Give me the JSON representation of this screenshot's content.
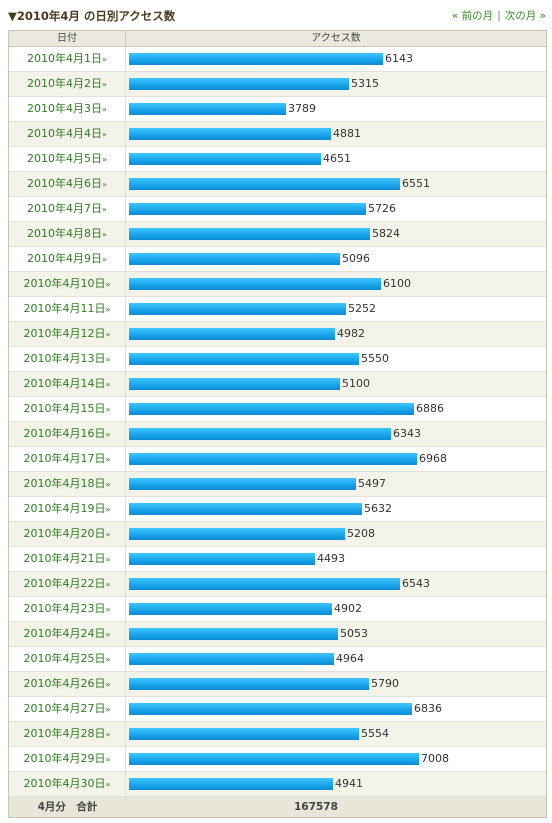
{
  "header": {
    "title": "▼2010年4月 の日別アクセス数",
    "prev_label": "« 前の月",
    "next_label": "次の月 »"
  },
  "table": {
    "col_date": "日付",
    "col_access": "アクセス数",
    "total_label": "4月分　合計",
    "total_value": "167578"
  },
  "chart_data": {
    "type": "bar",
    "orientation": "horizontal",
    "categories": [
      "2010年4月1日",
      "2010年4月2日",
      "2010年4月3日",
      "2010年4月4日",
      "2010年4月5日",
      "2010年4月6日",
      "2010年4月7日",
      "2010年4月8日",
      "2010年4月9日",
      "2010年4月10日",
      "2010年4月11日",
      "2010年4月12日",
      "2010年4月13日",
      "2010年4月14日",
      "2010年4月15日",
      "2010年4月16日",
      "2010年4月17日",
      "2010年4月18日",
      "2010年4月19日",
      "2010年4月20日",
      "2010年4月21日",
      "2010年4月22日",
      "2010年4月23日",
      "2010年4月24日",
      "2010年4月25日",
      "2010年4月26日",
      "2010年4月27日",
      "2010年4月28日",
      "2010年4月29日",
      "2010年4月30日"
    ],
    "values": [
      6143,
      5315,
      3789,
      4881,
      4651,
      6551,
      5726,
      5824,
      5096,
      6100,
      5252,
      4982,
      5550,
      5100,
      6886,
      6343,
      6968,
      5497,
      5632,
      5208,
      4493,
      6543,
      4902,
      5053,
      4964,
      5790,
      6836,
      5554,
      7008,
      4941
    ],
    "bar_color": "#1aa6ec"
  }
}
